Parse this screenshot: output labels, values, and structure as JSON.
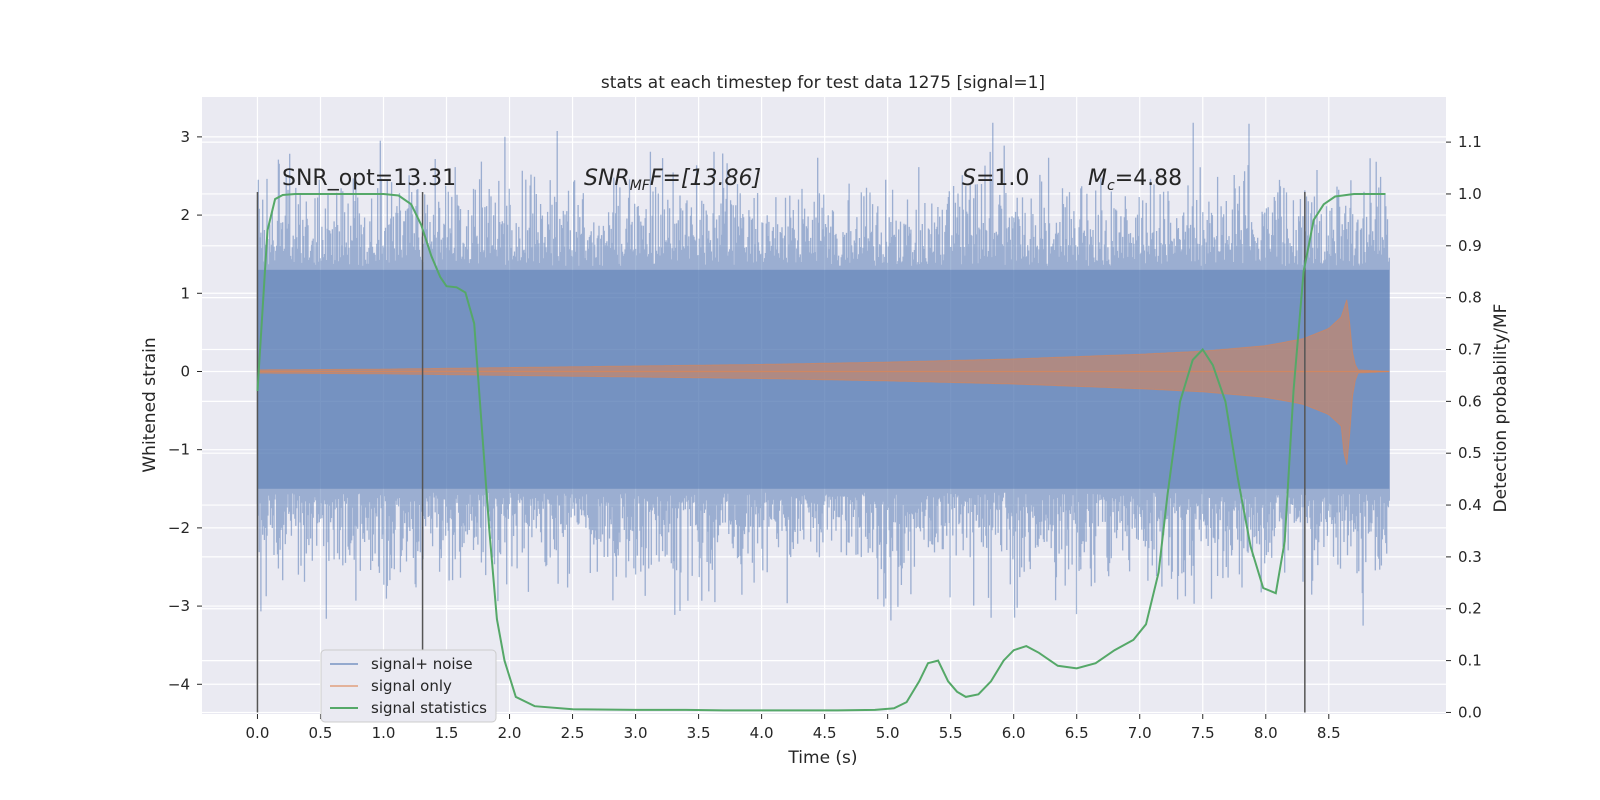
{
  "chart_data": {
    "type": "line",
    "title": "stats at each timestep for test data 1275 [signal=1]",
    "xlabel": "Time (s)",
    "ylabel": "Whitened strain",
    "y2label": "Detection probability/MF",
    "xlim": [
      -0.44,
      9.43
    ],
    "ylim": [
      -4.38,
      3.51
    ],
    "y2lim": [
      -0.003,
      1.187
    ],
    "x_ticks": [
      "0.0",
      "0.5",
      "1.0",
      "1.5",
      "2.0",
      "2.5",
      "3.0",
      "3.5",
      "4.0",
      "4.5",
      "5.0",
      "5.5",
      "6.0",
      "6.5",
      "7.0",
      "7.5",
      "8.0",
      "8.5"
    ],
    "y_ticks": [
      "−4",
      "−3",
      "−2",
      "−1",
      "0",
      "1",
      "2",
      "3"
    ],
    "y2_ticks": [
      "0.0",
      "0.1",
      "0.2",
      "0.3",
      "0.4",
      "0.5",
      "0.6",
      "0.7",
      "0.8",
      "0.9",
      "1.0",
      "1.1"
    ],
    "grid": true,
    "legend_position": "lower-left",
    "annotations": {
      "snr_opt": "SNR_opt=13.31",
      "snr_mf_main": "SNR",
      "snr_mf_sub": "MF",
      "snr_mf_rest": "F=[13.86]",
      "s_main": "S",
      "s_rest": "=1.0",
      "mc_main": "M",
      "mc_sub": "c",
      "mc_rest": "=4.88"
    },
    "vertical_markers_x": [
      0.0,
      1.31,
      8.31
    ],
    "series": [
      {
        "name": "signal+ noise",
        "color": "#4c72b0",
        "description_x_range": [
          0.0,
          8.98
        ],
        "band_core": [
          -1.5,
          1.3
        ],
        "extremes": [
          -3.65,
          3.18
        ]
      },
      {
        "name": "signal only",
        "color": "#dd8452",
        "x": [
          0.0,
          1.0,
          2.0,
          3.0,
          4.0,
          5.0,
          6.0,
          7.0,
          7.5,
          8.0,
          8.3,
          8.5,
          8.6,
          8.65,
          8.68,
          8.72,
          8.98
        ],
        "envelope": [
          0.02,
          0.03,
          0.05,
          0.07,
          0.09,
          0.12,
          0.16,
          0.22,
          0.26,
          0.33,
          0.42,
          0.55,
          0.7,
          0.95,
          0.3,
          0.02,
          0.0
        ]
      },
      {
        "name": "signal statistics",
        "color": "#55a868",
        "axis": "right",
        "x": [
          0.0,
          0.08,
          0.14,
          0.2,
          0.3,
          0.5,
          0.8,
          1.0,
          1.12,
          1.22,
          1.3,
          1.38,
          1.45,
          1.5,
          1.58,
          1.65,
          1.72,
          1.78,
          1.84,
          1.9,
          1.96,
          2.05,
          2.2,
          2.5,
          3.0,
          3.4,
          3.7,
          4.2,
          4.6,
          4.9,
          5.05,
          5.15,
          5.25,
          5.32,
          5.4,
          5.48,
          5.55,
          5.62,
          5.72,
          5.82,
          5.92,
          6.0,
          6.1,
          6.2,
          6.35,
          6.5,
          6.65,
          6.8,
          6.95,
          7.05,
          7.15,
          7.22,
          7.32,
          7.42,
          7.5,
          7.58,
          7.68,
          7.78,
          7.88,
          7.98,
          8.08,
          8.15,
          8.22,
          8.3,
          8.38,
          8.46,
          8.55,
          8.7,
          8.95
        ],
        "values": [
          0.62,
          0.93,
          0.99,
          0.998,
          1.0,
          1.0,
          1.0,
          1.0,
          0.997,
          0.98,
          0.94,
          0.88,
          0.84,
          0.822,
          0.82,
          0.81,
          0.75,
          0.55,
          0.35,
          0.18,
          0.1,
          0.03,
          0.012,
          0.006,
          0.005,
          0.005,
          0.004,
          0.004,
          0.004,
          0.005,
          0.008,
          0.02,
          0.06,
          0.095,
          0.1,
          0.06,
          0.04,
          0.03,
          0.035,
          0.06,
          0.1,
          0.12,
          0.128,
          0.115,
          0.09,
          0.085,
          0.095,
          0.12,
          0.14,
          0.17,
          0.27,
          0.42,
          0.6,
          0.68,
          0.7,
          0.67,
          0.6,
          0.45,
          0.32,
          0.24,
          0.23,
          0.33,
          0.62,
          0.85,
          0.95,
          0.98,
          0.995,
          1.0,
          1.0
        ]
      }
    ]
  }
}
